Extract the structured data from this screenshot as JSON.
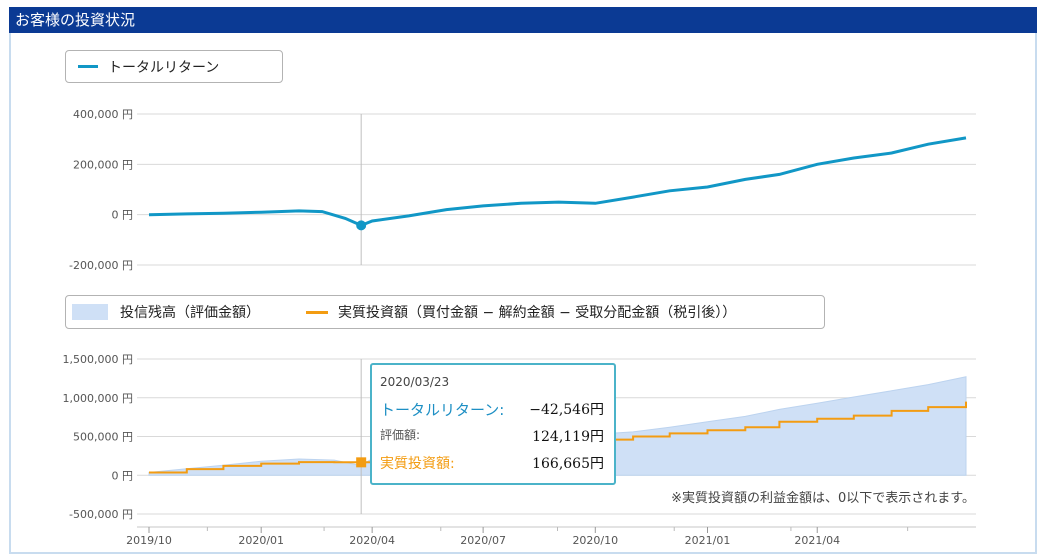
{
  "header": {
    "title": "お客様の投資状況"
  },
  "legend_top": {
    "label": "トータルリターン"
  },
  "legend_bottom": {
    "area_label": "投信残高（評価金額）",
    "line_label": "実質投資額（買付金額 − 解約金額 − 受取分配金額（税引後））"
  },
  "tooltip": {
    "date": "2020/03/23",
    "total_return_label": "トータルリターン:",
    "total_return_value": "−42,546円",
    "valuation_label": "評価額:",
    "valuation_value": "124,119円",
    "invested_label": "実質投資額:",
    "invested_value": "166,665円"
  },
  "note": "※実質投資額の利益金額は、0以下で表示されます。",
  "colors": {
    "header": "#0b3a94",
    "total_return": "#1197c6",
    "balance_area": "#cfe0f6",
    "invested": "#f39c12"
  },
  "chart_data": [
    {
      "type": "line",
      "series": [
        {
          "name": "トータルリターン",
          "x": [
            "2019-10-01",
            "2019-11-01",
            "2019-12-01",
            "2020-01-01",
            "2020-02-01",
            "2020-02-20",
            "2020-03-10",
            "2020-03-23",
            "2020-04-01",
            "2020-05-01",
            "2020-06-01",
            "2020-07-01",
            "2020-08-01",
            "2020-09-01",
            "2020-10-01",
            "2020-11-01",
            "2020-12-01",
            "2021-01-01",
            "2021-02-01",
            "2021-03-01",
            "2021-04-01",
            "2021-05-01",
            "2021-06-01",
            "2021-07-01",
            "2021-08-01"
          ],
          "values": [
            0,
            3000,
            6000,
            10000,
            15000,
            12000,
            -15000,
            -42546,
            -25000,
            -5000,
            20000,
            35000,
            45000,
            50000,
            45000,
            70000,
            95000,
            110000,
            140000,
            160000,
            200000,
            225000,
            245000,
            280000,
            305000
          ]
        }
      ],
      "y_ticks": [
        "400,000 円",
        "200,000 円",
        "0 円",
        "-200,000 円"
      ],
      "ylim": [
        -200000,
        400000
      ],
      "grid": true,
      "legend": "top-left"
    },
    {
      "type": "area",
      "x": [
        "2019-10-01",
        "2019-11-01",
        "2019-12-01",
        "2020-01-01",
        "2020-02-01",
        "2020-03-01",
        "2020-03-23",
        "2020-04-01",
        "2020-05-01",
        "2020-06-01",
        "2020-07-01",
        "2020-08-01",
        "2020-09-01",
        "2020-10-01",
        "2020-11-01",
        "2020-12-01",
        "2021-01-01",
        "2021-02-01",
        "2021-03-01",
        "2021-04-01",
        "2021-05-01",
        "2021-06-01",
        "2021-07-01",
        "2021-08-01"
      ],
      "series": [
        {
          "name": "投信残高（評価金額）",
          "values": [
            35000,
            85000,
            130000,
            180000,
            210000,
            195000,
            124119,
            215000,
            280000,
            350000,
            410000,
            450000,
            500000,
            530000,
            560000,
            620000,
            690000,
            760000,
            850000,
            930000,
            1010000,
            1090000,
            1170000,
            1270000
          ]
        },
        {
          "name": "実質投資額（買付金額 − 解約金額 − 受取分配金額（税引後））",
          "values": [
            35000,
            80000,
            120000,
            150000,
            170000,
            166665,
            166665,
            200000,
            250000,
            300000,
            340000,
            380000,
            420000,
            460000,
            500000,
            540000,
            580000,
            620000,
            690000,
            730000,
            770000,
            830000,
            880000,
            950000
          ]
        }
      ],
      "y_ticks": [
        "1,500,000 円",
        "1,000,000 円",
        "500,000 円",
        "0 円",
        "-500,000 円"
      ],
      "x_ticks": [
        "2019/10",
        "2020/01",
        "2020/04",
        "2020/07",
        "2020/10",
        "2021/01",
        "2021/04"
      ],
      "ylim": [
        -500000,
        1500000
      ],
      "grid": true,
      "legend": "top-left"
    }
  ]
}
